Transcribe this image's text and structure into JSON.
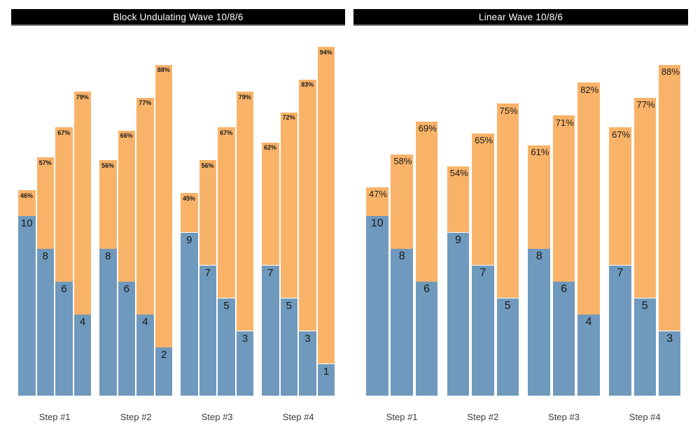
{
  "colors": {
    "background": "#ffffff",
    "bar_blue": "#6f99bd",
    "bar_orange": "#f9b369",
    "title_bg": "#000000",
    "title_text": "#ffffff",
    "title_underline": "#757575",
    "data_label": "#1a1a1a",
    "step_label": "#3a3a3a"
  },
  "chart_data": [
    {
      "type": "bar",
      "subtype": "overlay-stacked-grouped",
      "title": "Block Undulating Wave 10/8/6",
      "categories": [
        "Step #1",
        "Step #2",
        "Step #3",
        "Step #4"
      ],
      "legend": "none",
      "grid": "off",
      "series": [
        {
          "name": "reps",
          "color_key": "bar_blue",
          "label_format": "{v}",
          "values": [
            [
              10,
              8,
              6,
              4
            ],
            [
              8,
              6,
              4,
              2
            ],
            [
              9,
              7,
              5,
              3
            ],
            [
              7,
              5,
              3,
              1
            ]
          ]
        },
        {
          "name": "load_percent",
          "color_key": "bar_orange",
          "label_format": "{v}%",
          "values": [
            [
              46,
              57,
              67,
              79
            ],
            [
              56,
              66,
              77,
              88
            ],
            [
              45,
              56,
              67,
              79
            ],
            [
              62,
              72,
              83,
              94
            ]
          ]
        }
      ]
    },
    {
      "type": "bar",
      "subtype": "overlay-stacked-grouped",
      "title": "Linear Wave 10/8/6",
      "categories": [
        "Step #1",
        "Step #2",
        "Step #3",
        "Step #4"
      ],
      "legend": "none",
      "grid": "off",
      "series": [
        {
          "name": "reps",
          "color_key": "bar_blue",
          "label_format": "{v}",
          "values": [
            [
              10,
              8,
              6
            ],
            [
              9,
              7,
              5
            ],
            [
              8,
              6,
              4
            ],
            [
              7,
              5,
              3
            ]
          ]
        },
        {
          "name": "load_percent",
          "color_key": "bar_orange",
          "label_format": "{v}%",
          "values": [
            [
              47,
              58,
              69
            ],
            [
              54,
              65,
              75
            ],
            [
              61,
              71,
              82
            ],
            [
              67,
              77,
              88
            ]
          ]
        }
      ]
    }
  ]
}
